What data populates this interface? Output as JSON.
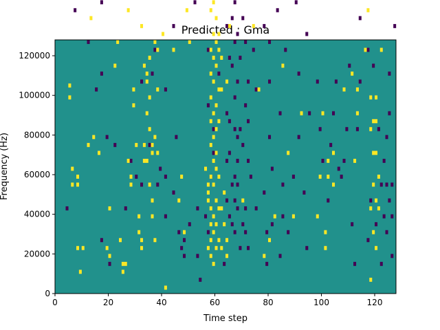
{
  "chart_data": {
    "type": "heatmap",
    "title": "Predicted : Gma",
    "xlabel": "Time step",
    "ylabel": "Frequency (Hz)",
    "xlim": [
      0,
      128
    ],
    "ylim": [
      0,
      128000
    ],
    "xticks": [
      "0",
      "20",
      "40",
      "60",
      "80",
      "100",
      "120"
    ],
    "yticks": [
      "0",
      "20000",
      "40000",
      "60000",
      "80000",
      "100000",
      "120000"
    ],
    "grid": false,
    "legend": "none",
    "n_time_steps": 128,
    "n_freq_bins": 64,
    "bin_width_hz": 2000,
    "colormap": {
      "low": "#440154",
      "mid": "#21918c",
      "high": "#fde725"
    },
    "background_value": "mid",
    "high_cells": [
      [
        1,
        125
      ],
      [
        4,
        83
      ],
      [
        4,
        81
      ],
      [
        5,
        52
      ],
      [
        5,
        49
      ],
      [
        6,
        31
      ],
      [
        6,
        27
      ],
      [
        8,
        29
      ],
      [
        8,
        27
      ],
      [
        8,
        11
      ],
      [
        9,
        5
      ],
      [
        10,
        11
      ],
      [
        12,
        37
      ],
      [
        13,
        69
      ],
      [
        14,
        39
      ],
      [
        16,
        75
      ],
      [
        16,
        35
      ],
      [
        19,
        11
      ],
      [
        20,
        21
      ],
      [
        20,
        9
      ],
      [
        22,
        57
      ],
      [
        23,
        63
      ],
      [
        24,
        13
      ],
      [
        25,
        7
      ],
      [
        25,
        5
      ],
      [
        26,
        7
      ],
      [
        27,
        71
      ],
      [
        27,
        33
      ],
      [
        28,
        27
      ],
      [
        28,
        29
      ],
      [
        29,
        51
      ],
      [
        29,
        47
      ],
      [
        30,
        37
      ],
      [
        31,
        19
      ],
      [
        31,
        15
      ],
      [
        32,
        13
      ],
      [
        32,
        11
      ],
      [
        32,
        67
      ],
      [
        33,
        57
      ],
      [
        33,
        37
      ],
      [
        33,
        33
      ],
      [
        34,
        33
      ],
      [
        34,
        53
      ],
      [
        34,
        55
      ],
      [
        34,
        45
      ],
      [
        35,
        49
      ],
      [
        35,
        41
      ],
      [
        35,
        59
      ],
      [
        35,
        27
      ],
      [
        36,
        37
      ],
      [
        36,
        35
      ],
      [
        36,
        23
      ],
      [
        36,
        19
      ],
      [
        37,
        13
      ],
      [
        37,
        39
      ],
      [
        37,
        63
      ],
      [
        38,
        61
      ],
      [
        38,
        51
      ],
      [
        38,
        35
      ],
      [
        40,
        65
      ],
      [
        41,
        1
      ],
      [
        42,
        75
      ],
      [
        44,
        61
      ],
      [
        46,
        23
      ],
      [
        47,
        29
      ],
      [
        48,
        15
      ],
      [
        49,
        71
      ],
      [
        50,
        63
      ],
      [
        51,
        97
      ],
      [
        52,
        105
      ],
      [
        52,
        113
      ],
      [
        54,
        117
      ],
      [
        55,
        97
      ],
      [
        56,
        109
      ],
      [
        56,
        31
      ],
      [
        57,
        27
      ],
      [
        57,
        25
      ],
      [
        57,
        23
      ],
      [
        57,
        11
      ],
      [
        58,
        107
      ],
      [
        58,
        103
      ],
      [
        58,
        93
      ],
      [
        58,
        85
      ],
      [
        58,
        75
      ],
      [
        58,
        71
      ],
      [
        58,
        61
      ],
      [
        58,
        55
      ],
      [
        58,
        49
      ],
      [
        58,
        43
      ],
      [
        58,
        37
      ],
      [
        58,
        29
      ],
      [
        58,
        21
      ],
      [
        58,
        17
      ],
      [
        58,
        13
      ],
      [
        58,
        9
      ],
      [
        59,
        113
      ],
      [
        59,
        109
      ],
      [
        59,
        101
      ],
      [
        59,
        95
      ],
      [
        59,
        89
      ],
      [
        59,
        81
      ],
      [
        59,
        77
      ],
      [
        59,
        73
      ],
      [
        59,
        65
      ],
      [
        59,
        59
      ],
      [
        59,
        53
      ],
      [
        59,
        45
      ],
      [
        59,
        39
      ],
      [
        59,
        33
      ],
      [
        59,
        27
      ],
      [
        59,
        19
      ],
      [
        59,
        15
      ],
      [
        59,
        7
      ],
      [
        60,
        99
      ],
      [
        60,
        91
      ],
      [
        60,
        85
      ],
      [
        60,
        79
      ],
      [
        60,
        69
      ],
      [
        60,
        63
      ],
      [
        60,
        57
      ],
      [
        60,
        47
      ],
      [
        60,
        41
      ],
      [
        60,
        35
      ],
      [
        60,
        31
      ],
      [
        60,
        23
      ],
      [
        60,
        17
      ],
      [
        60,
        11
      ],
      [
        61,
        65
      ],
      [
        61,
        61
      ],
      [
        61,
        51
      ],
      [
        61,
        43
      ],
      [
        61,
        29
      ],
      [
        61,
        21
      ],
      [
        61,
        13
      ],
      [
        62,
        59
      ],
      [
        62,
        51
      ],
      [
        62,
        21
      ],
      [
        62,
        11
      ],
      [
        62,
        91
      ],
      [
        63,
        91
      ],
      [
        63,
        25
      ],
      [
        63,
        17
      ],
      [
        64,
        13
      ],
      [
        64,
        9
      ],
      [
        64,
        53
      ],
      [
        65,
        67
      ],
      [
        67,
        113
      ],
      [
        70,
        23
      ],
      [
        74,
        67
      ],
      [
        76,
        51
      ],
      [
        78,
        9
      ],
      [
        80,
        13
      ],
      [
        82,
        19
      ],
      [
        85,
        57
      ],
      [
        87,
        35
      ],
      [
        88,
        125
      ],
      [
        89,
        19
      ],
      [
        90,
        87
      ],
      [
        92,
        45
      ],
      [
        94,
        125
      ],
      [
        98,
        19
      ],
      [
        99,
        29
      ],
      [
        100,
        45
      ],
      [
        101,
        15
      ],
      [
        101,
        11
      ],
      [
        102,
        29
      ],
      [
        102,
        33
      ],
      [
        103,
        85
      ],
      [
        104,
        35
      ],
      [
        104,
        27
      ],
      [
        108,
        51
      ],
      [
        111,
        119
      ],
      [
        111,
        55
      ],
      [
        112,
        33
      ],
      [
        113,
        51
      ],
      [
        113,
        45
      ],
      [
        116,
        61
      ],
      [
        117,
        123
      ],
      [
        117,
        71
      ],
      [
        118,
        49
      ],
      [
        118,
        41
      ],
      [
        118,
        21
      ],
      [
        118,
        3
      ],
      [
        119,
        43
      ],
      [
        119,
        35
      ],
      [
        119,
        27
      ],
      [
        119,
        15
      ],
      [
        120,
        49
      ],
      [
        120,
        43
      ],
      [
        120,
        35
      ],
      [
        120,
        23
      ],
      [
        120,
        11
      ],
      [
        121,
        21
      ],
      [
        121,
        29
      ],
      [
        122,
        61
      ],
      [
        125,
        121
      ],
      [
        125,
        109
      ],
      [
        126,
        91
      ]
    ],
    "low_cells": [
      [
        1,
        109
      ],
      [
        2,
        109
      ],
      [
        4,
        21
      ],
      [
        7,
        71
      ],
      [
        11,
        111
      ],
      [
        12,
        63
      ],
      [
        15,
        51
      ],
      [
        17,
        13
      ],
      [
        17,
        73
      ],
      [
        17,
        55
      ],
      [
        19,
        39
      ],
      [
        20,
        7
      ],
      [
        22,
        37
      ],
      [
        23,
        83
      ],
      [
        24,
        113
      ],
      [
        26,
        21
      ],
      [
        28,
        33
      ],
      [
        30,
        29
      ],
      [
        31,
        93
      ],
      [
        32,
        53
      ],
      [
        32,
        27
      ],
      [
        33,
        83
      ],
      [
        35,
        37
      ],
      [
        36,
        55
      ],
      [
        37,
        61
      ],
      [
        38,
        27
      ],
      [
        39,
        31
      ],
      [
        39,
        121
      ],
      [
        40,
        95
      ],
      [
        41,
        19
      ],
      [
        41,
        29
      ],
      [
        41,
        51
      ],
      [
        42,
        99
      ],
      [
        42,
        111
      ],
      [
        44,
        25
      ],
      [
        44,
        67
      ],
      [
        45,
        39
      ],
      [
        46,
        15
      ],
      [
        47,
        11
      ],
      [
        48,
        9
      ],
      [
        48,
        13
      ],
      [
        50,
        17
      ],
      [
        52,
        73
      ],
      [
        53,
        21
      ],
      [
        53,
        9
      ],
      [
        54,
        3
      ],
      [
        55,
        95
      ],
      [
        56,
        19
      ],
      [
        57,
        15
      ],
      [
        57,
        85
      ],
      [
        57,
        61
      ],
      [
        57,
        47
      ],
      [
        58,
        29
      ],
      [
        59,
        35
      ],
      [
        59,
        41
      ],
      [
        61,
        55
      ],
      [
        62,
        101
      ],
      [
        63,
        7
      ],
      [
        64,
        67
      ],
      [
        64,
        23
      ],
      [
        64,
        33
      ],
      [
        64,
        45
      ],
      [
        65,
        43
      ],
      [
        65,
        101
      ],
      [
        65,
        59
      ],
      [
        65,
        35
      ],
      [
        65,
        19
      ],
      [
        66,
        57
      ],
      [
        66,
        79
      ],
      [
        66,
        93
      ],
      [
        66,
        83
      ],
      [
        66,
        69
      ],
      [
        66,
        27
      ],
      [
        66,
        17
      ],
      [
        66,
        111
      ],
      [
        67,
        109
      ],
      [
        67,
        97
      ],
      [
        67,
        83
      ],
      [
        67,
        73
      ],
      [
        67,
        63
      ],
      [
        67,
        49
      ],
      [
        67,
        41
      ],
      [
        67,
        29
      ],
      [
        67,
        23
      ],
      [
        67,
        15
      ],
      [
        68,
        89
      ],
      [
        68,
        75
      ],
      [
        68,
        65
      ],
      [
        68,
        53
      ],
      [
        68,
        39
      ],
      [
        68,
        33
      ],
      [
        68,
        27
      ],
      [
        68,
        21
      ],
      [
        69,
        101
      ],
      [
        69,
        85
      ],
      [
        69,
        59
      ],
      [
        69,
        41
      ],
      [
        69,
        11
      ],
      [
        70,
        111
      ],
      [
        70,
        81
      ],
      [
        70,
        69
      ],
      [
        70,
        37
      ],
      [
        70,
        17
      ],
      [
        71,
        91
      ],
      [
        71,
        63
      ],
      [
        71,
        47
      ],
      [
        71,
        21
      ],
      [
        71,
        15
      ],
      [
        72,
        53
      ],
      [
        72,
        43
      ],
      [
        72,
        33
      ],
      [
        72,
        11
      ],
      [
        73,
        79
      ],
      [
        73,
        29
      ],
      [
        74,
        61
      ],
      [
        75,
        51
      ],
      [
        75,
        21
      ],
      [
        77,
        113
      ],
      [
        77,
        91
      ],
      [
        78,
        67
      ],
      [
        78,
        25
      ],
      [
        79,
        7
      ],
      [
        79,
        15
      ],
      [
        80,
        85
      ],
      [
        80,
        63
      ],
      [
        80,
        53
      ],
      [
        80,
        39
      ],
      [
        81,
        31
      ],
      [
        81,
        17
      ],
      [
        82,
        109
      ],
      [
        83,
        97
      ],
      [
        83,
        71
      ],
      [
        84,
        45
      ],
      [
        84,
        9
      ],
      [
        85,
        19
      ],
      [
        85,
        27
      ],
      [
        86,
        61
      ],
      [
        87,
        15
      ],
      [
        88,
        93
      ],
      [
        89,
        29
      ],
      [
        90,
        73
      ],
      [
        91,
        55
      ],
      [
        91,
        39
      ],
      [
        92,
        101
      ],
      [
        93,
        25
      ],
      [
        94,
        11
      ],
      [
        94,
        65
      ],
      [
        95,
        45
      ],
      [
        96,
        97
      ],
      [
        97,
        75
      ],
      [
        98,
        53
      ],
      [
        99,
        41
      ],
      [
        100,
        33
      ],
      [
        101,
        93
      ],
      [
        102,
        23
      ],
      [
        103,
        37
      ],
      [
        104,
        45
      ],
      [
        105,
        53
      ],
      [
        106,
        31
      ],
      [
        107,
        29
      ],
      [
        108,
        33
      ],
      [
        109,
        41
      ],
      [
        110,
        57
      ],
      [
        111,
        17
      ],
      [
        112,
        7
      ],
      [
        113,
        41
      ],
      [
        114,
        53
      ],
      [
        114,
        69
      ],
      [
        115,
        79
      ],
      [
        116,
        91
      ],
      [
        117,
        61
      ],
      [
        117,
        13
      ],
      [
        118,
        23
      ],
      [
        119,
        57
      ],
      [
        120,
        17
      ],
      [
        121,
        41
      ],
      [
        122,
        7
      ],
      [
        122,
        27
      ],
      [
        123,
        19
      ],
      [
        123,
        33
      ],
      [
        124,
        27
      ],
      [
        124,
        39
      ],
      [
        124,
        15
      ],
      [
        125,
        23
      ],
      [
        125,
        45
      ],
      [
        125,
        55
      ],
      [
        126,
        9
      ],
      [
        126,
        19
      ],
      [
        126,
        27
      ],
      [
        127,
        67
      ],
      [
        127,
        85
      ],
      [
        127,
        121
      ],
      [
        127,
        109
      ]
    ]
  }
}
